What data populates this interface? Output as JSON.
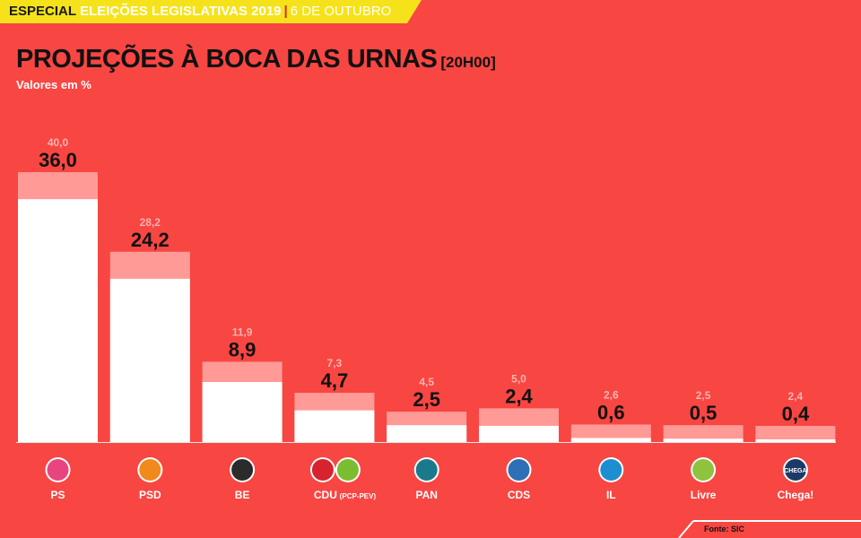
{
  "banner": {
    "especial": "ESPECIAL",
    "subject": "ELEIÇÕES LEGISLATIVAS 2019",
    "separator": "|",
    "date": "6 DE OUTUBRO"
  },
  "colors": {
    "background": "#f84642",
    "banner": "#f6e21a",
    "projection_bar": "#ffffff",
    "upper_bar": "#ff9a96",
    "upper_label": "#ffb3b0",
    "value_label": "#111111"
  },
  "chart_data": {
    "type": "bar",
    "title": "PROJEÇÕES À BOCA DAS URNAS",
    "title_suffix": "[20H00]",
    "subtitle": "Valores em %",
    "categories": [
      "PS",
      "PSD",
      "BE",
      "CDU",
      "PAN",
      "CDS",
      "IL",
      "Livre",
      "Chega!"
    ],
    "category_suffixes": [
      "",
      "",
      "",
      "(PCP-PEV)",
      "",
      "",
      "",
      "",
      ""
    ],
    "series": [
      {
        "values": [
          36.0,
          24.2,
          8.9,
          4.7,
          2.5,
          2.4,
          0.6,
          0.5,
          0.4
        ],
        "labels": [
          "36,0",
          "24,2",
          "8,9",
          "4,7",
          "2,5",
          "2,4",
          "0,6",
          "0,5",
          "0,4"
        ]
      },
      {
        "values": [
          40.0,
          28.2,
          11.9,
          7.3,
          4.5,
          5.0,
          2.6,
          2.5,
          2.4
        ],
        "labels": [
          "40,0",
          "28,2",
          "11,9",
          "7,3",
          "4,5",
          "5,0",
          "2,6",
          "2,5",
          "2,4"
        ]
      }
    ],
    "ylim": [
      0,
      40
    ],
    "grid": false,
    "party_icons": [
      "ps-rose-icon",
      "psd-arrow-icon",
      "be-star-icon",
      "cdu-hammer-sickle-icon",
      "pan-tree-icon",
      "cds-ball-icon",
      "il-info-icon",
      "livre-flower-icon",
      "chega-logo-icon"
    ],
    "party_icon_colors": [
      "#e8457f",
      "#f08a1d",
      "#2b2b2b",
      "#d6232e",
      "#1a7a8c",
      "#2e6fb7",
      "#1d8fd0",
      "#8fc23d",
      "#1d3a66"
    ],
    "cdu_second_icon": "pev-sunflower-icon",
    "chega_icon_text": "CHEGA"
  },
  "source": "Fonte: SIC"
}
